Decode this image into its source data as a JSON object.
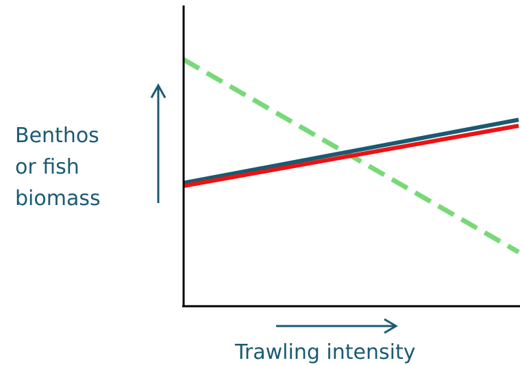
{
  "chart_data": {
    "type": "line",
    "title": "",
    "ylabel_lines": [
      "Benthos",
      "or fish",
      "biomass"
    ],
    "xlabel": "Trawling intensity",
    "ticks": "none",
    "grid": false,
    "legend": "none",
    "label_color": "#1a5a72",
    "arrow_color": "#1a5a72",
    "series": [
      {
        "color": "#77d977",
        "style": "dashed",
        "values": [
          0.82,
          0.18
        ]
      },
      {
        "color": "#1a5a72",
        "style": "solid",
        "values": [
          0.41,
          0.62
        ]
      },
      {
        "color": "#ee1111",
        "style": "solid",
        "values": [
          0.4,
          0.6
        ]
      }
    ]
  }
}
